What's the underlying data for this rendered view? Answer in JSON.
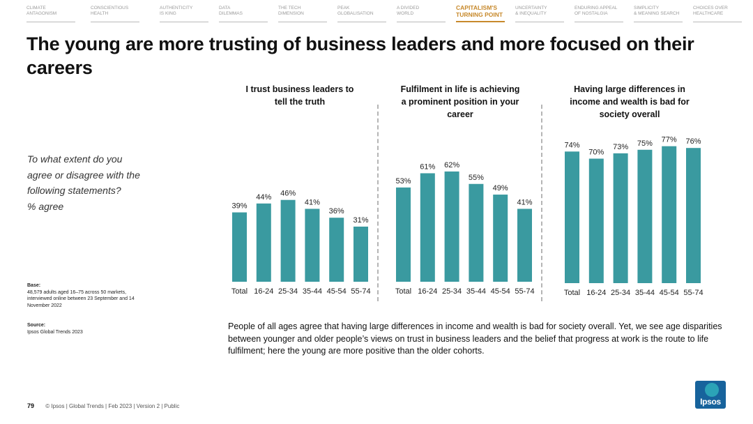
{
  "nav": [
    {
      "l1": "CLIMATE",
      "l2": "ANTAGONISM",
      "active": false
    },
    {
      "l1": "CONSCIENTIOUS",
      "l2": "HEALTH",
      "active": false
    },
    {
      "l1": "AUTHENTICITY",
      "l2": "IS KING",
      "active": false
    },
    {
      "l1": "DATA",
      "l2": "DILEMMAS",
      "active": false
    },
    {
      "l1": "THE TECH",
      "l2": "DIMENSION",
      "active": false
    },
    {
      "l1": "PEAK",
      "l2": "GLOBALISATION",
      "active": false
    },
    {
      "l1": "A DIVIDED",
      "l2": "WORLD",
      "active": false
    },
    {
      "l1": "CAPITALISM'S",
      "l2": "TURNING POINT",
      "active": true
    },
    {
      "l1": "UNCERTAINTY",
      "l2": "& INEQUALITY",
      "active": false
    },
    {
      "l1": "ENDURING APPEAL",
      "l2": "OF NOSTALGIA",
      "active": false
    },
    {
      "l1": "SIMPLICITY",
      "l2": "& MEANING SEARCH",
      "active": false
    },
    {
      "l1": "CHOICES OVER",
      "l2": "HEALTHCARE",
      "active": false
    }
  ],
  "title": "The young are more trusting of business leaders and more focused on their careers",
  "question": [
    "To what extent do you",
    "agree or disagree with the",
    "following statements?",
    "% agree"
  ],
  "base": {
    "label": "Base:",
    "lines": [
      "48,579 adults aged 16–75 across 50 markets,",
      "interviewed online between 23 September and 14",
      "November 2022"
    ]
  },
  "source": {
    "label": "Source:",
    "lines": [
      "Ipsos Global Trends 2023"
    ]
  },
  "chart_titles": [
    [
      "I trust business leaders to",
      "tell the truth"
    ],
    [
      "Fulfilment in life is achieving",
      "a prominent position in your",
      "career"
    ],
    [
      "Having large differences in",
      "income and wealth is bad for",
      "society overall"
    ]
  ],
  "chart_data": [
    {
      "type": "bar",
      "title": "I trust business leaders to tell the truth",
      "categories": [
        "Total",
        "16-24",
        "25-34",
        "35-44",
        "45-54",
        "55-74"
      ],
      "values": [
        39,
        44,
        46,
        41,
        36,
        31
      ],
      "unit": "%"
    },
    {
      "type": "bar",
      "title": "Fulfilment in life is achieving a prominent position in your career",
      "categories": [
        "Total",
        "16-24",
        "25-34",
        "35-44",
        "45-54",
        "55-74"
      ],
      "values": [
        53,
        61,
        62,
        55,
        49,
        41
      ],
      "unit": "%"
    },
    {
      "type": "bar",
      "title": "Having large differences in income and wealth is bad for society overall",
      "categories": [
        "Total",
        "16-24",
        "25-34",
        "35-44",
        "45-54",
        "55-74"
      ],
      "values": [
        74,
        70,
        73,
        75,
        77,
        76
      ],
      "unit": "%"
    }
  ],
  "colors": {
    "bar": "#3a9aa0",
    "accent": "#c7892b",
    "logo": "#17639c"
  },
  "summary": "People of all ages agree that having large differences in income and wealth is bad for society overall. Yet, we see age disparities between younger and older people’s views on trust in business leaders and the belief that progress at work is the route to life fulfilment; here the young are more positive than the older cohorts.",
  "footer": {
    "page": "79",
    "text": "© Ipsos | Global Trends | Feb 2023 | Version 2 | Public"
  },
  "logo_text": "Ipsos"
}
